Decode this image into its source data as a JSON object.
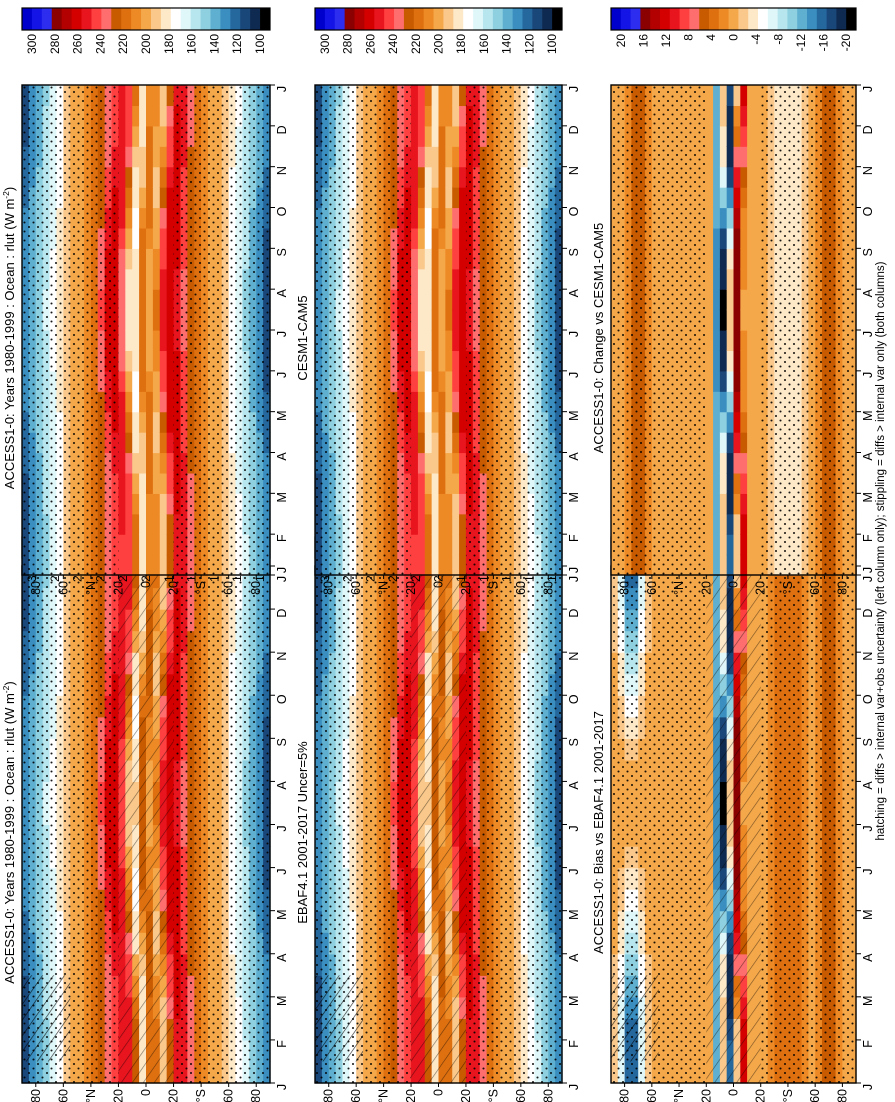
{
  "figure": {
    "caption": "hatching = diffs > internal var+obs uncertainty (left column only); stippling = diffs > internal var only (both columns)"
  },
  "chart_data": [
    {
      "type": "heatmap",
      "title": "ACCESS1-0: Years 1980-1999 : Ocean : rlut (W m",
      "title_sup": "-2",
      "title_close": ")",
      "kind": "field",
      "hatch": true,
      "stipple": true,
      "x_labels": [
        "J",
        "F",
        "M",
        "A",
        "M",
        "J",
        "J",
        "A",
        "S",
        "O",
        "N",
        "D",
        "J"
      ],
      "y_labels": [
        "80",
        "60",
        "°N",
        "20",
        "0",
        "20",
        "°S",
        "60",
        "80"
      ],
      "x_axis": "month",
      "y_axis": "latitude",
      "ylim": [
        -90,
        90
      ],
      "colorbar": {
        "ticks": [
          "300",
          "280",
          "260",
          "240",
          "220",
          "200",
          "180",
          "160",
          "140",
          "120",
          "100"
        ],
        "units": "W m-2"
      }
    },
    {
      "type": "heatmap",
      "title": "ACCESS1-0: Years 1980-1999 : Ocean : rlut (W m",
      "title_sup": "-2",
      "title_close": ")",
      "kind": "field",
      "hatch": false,
      "stipple": true,
      "x_labels": [
        "J",
        "F",
        "M",
        "A",
        "M",
        "J",
        "J",
        "A",
        "S",
        "O",
        "N",
        "D",
        "J"
      ],
      "y_labels": [
        "80",
        "60",
        "°N",
        "20",
        "0",
        "20",
        "°S",
        "60",
        "80"
      ],
      "x_axis": "month",
      "y_axis": "latitude",
      "ylim": [
        -90,
        90
      ],
      "colorbar": {
        "ticks": [
          "300",
          "280",
          "260",
          "240",
          "220",
          "200",
          "180",
          "160",
          "140",
          "120",
          "100"
        ],
        "units": "W m-2"
      }
    },
    {
      "type": "heatmap",
      "title": "EBAF4.1 2001-2017 Uncer=5%",
      "kind": "field",
      "hatch": true,
      "stipple": true,
      "x_labels": [
        "J",
        "F",
        "M",
        "A",
        "M",
        "J",
        "J",
        "A",
        "S",
        "O",
        "N",
        "D",
        "J"
      ],
      "y_labels": [
        "80",
        "60",
        "°N",
        "20",
        "0",
        "20",
        "°S",
        "60",
        "80"
      ],
      "x_axis": "month",
      "y_axis": "latitude",
      "ylim": [
        -90,
        90
      ],
      "colorbar": {
        "ticks": [
          "300",
          "280",
          "260",
          "240",
          "220",
          "200",
          "180",
          "160",
          "140",
          "120",
          "100"
        ],
        "units": "W m-2"
      }
    },
    {
      "type": "heatmap",
      "title": "CESM1-CAM5",
      "kind": "field",
      "hatch": false,
      "stipple": true,
      "x_labels": [
        "J",
        "F",
        "M",
        "A",
        "M",
        "J",
        "J",
        "A",
        "S",
        "O",
        "N",
        "D",
        "J"
      ],
      "y_labels": [
        "80",
        "60",
        "°N",
        "20",
        "0",
        "20",
        "°S",
        "60",
        "80"
      ],
      "x_axis": "month",
      "y_axis": "latitude",
      "ylim": [
        -90,
        90
      ],
      "colorbar": {
        "ticks": [
          "300",
          "280",
          "260",
          "240",
          "220",
          "200",
          "180",
          "160",
          "140",
          "120",
          "100"
        ],
        "units": "W m-2"
      }
    },
    {
      "type": "heatmap",
      "title": "ACCESS1-0: Bias vs EBAF4.1 2001-2017",
      "kind": "diff",
      "hatch": true,
      "stipple": true,
      "x_labels": [
        "J",
        "F",
        "M",
        "A",
        "M",
        "J",
        "J",
        "A",
        "S",
        "O",
        "N",
        "D",
        "J"
      ],
      "y_labels": [
        "80",
        "60",
        "°N",
        "20",
        "0",
        "20",
        "°S",
        "60",
        "80"
      ],
      "x_axis": "month",
      "y_axis": "latitude",
      "ylim": [
        -90,
        90
      ],
      "colorbar": {
        "ticks": [
          "20",
          "16",
          "12",
          "8",
          "4",
          "0",
          "-4",
          "-8",
          "-12",
          "-16",
          "-20"
        ],
        "units": "W m-2"
      }
    },
    {
      "type": "heatmap",
      "title": "ACCESS1-0: Change vs CESM1-CAM5",
      "kind": "diff",
      "hatch": false,
      "stipple": true,
      "x_labels": [
        "J",
        "F",
        "M",
        "A",
        "M",
        "J",
        "J",
        "A",
        "S",
        "O",
        "N",
        "D",
        "J"
      ],
      "y_labels": [
        "80",
        "60",
        "°N",
        "20",
        "0",
        "20",
        "°S",
        "60",
        "80"
      ],
      "x_axis": "month",
      "y_axis": "latitude",
      "ylim": [
        -90,
        90
      ],
      "colorbar": {
        "ticks": [
          "20",
          "16",
          "12",
          "8",
          "4",
          "0",
          "-4",
          "-8",
          "-12",
          "-16",
          "-20"
        ],
        "units": "W m-2"
      }
    }
  ],
  "palette": {
    "field": [
      "#0000cd",
      "#1414e6",
      "#2d2df0",
      "#8b0000",
      "#b30000",
      "#d40000",
      "#e8141e",
      "#ff4040",
      "#ff6e6e",
      "#c85a00",
      "#de7010",
      "#ed8a25",
      "#f5a84a",
      "#fac88a",
      "#fde8c8",
      "#ffffff",
      "#e0f7fa",
      "#b8e6ee",
      "#8ed0e0",
      "#5fb0d0",
      "#3a8fc0",
      "#25689e",
      "#1a477a",
      "#0f2a50",
      "#000000"
    ],
    "diff": [
      "#0000cd",
      "#1414e6",
      "#2d2df0",
      "#8b0000",
      "#b30000",
      "#d40000",
      "#e8141e",
      "#ff4040",
      "#ff6e6e",
      "#c85a00",
      "#de7010",
      "#ed8a25",
      "#f5a84a",
      "#fac88a",
      "#fde8c8",
      "#ffffff",
      "#e0f7fa",
      "#b8e6ee",
      "#8ed0e0",
      "#5fb0d0",
      "#3a8fc0",
      "#25689e",
      "#1a477a",
      "#0f2a50",
      "#000000"
    ]
  }
}
